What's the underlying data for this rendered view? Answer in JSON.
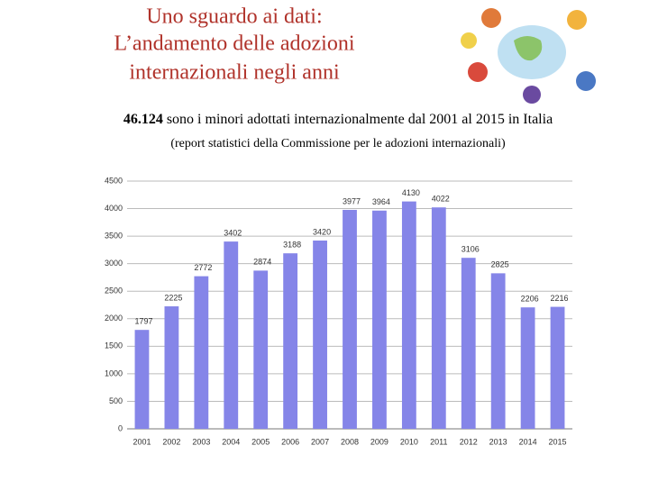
{
  "title_lines": [
    "Uno sguardo ai dati:",
    "L’andamento delle adozioni",
    "internazionali negli anni"
  ],
  "headline": {
    "number": "46.124",
    "text": "sono i minori adottati internazionalmente dal 2001 al 2015 in Italia"
  },
  "source": "(report statistici della Commissione per le adozioni internazionali)",
  "chart_data": {
    "type": "bar",
    "categories": [
      "2001",
      "2002",
      "2003",
      "2004",
      "2005",
      "2006",
      "2007",
      "2008",
      "2009",
      "2010",
      "2011",
      "2012",
      "2013",
      "2014",
      "2015"
    ],
    "values": [
      1797,
      2225,
      2772,
      3402,
      2874,
      3188,
      3420,
      3977,
      3964,
      4130,
      4022,
      3106,
      2825,
      2206,
      2216
    ],
    "color": "#8585e8",
    "ylim": [
      0,
      4500
    ],
    "yticks": [
      0,
      500,
      1000,
      1500,
      2000,
      2500,
      3000,
      3500,
      4000,
      4500
    ],
    "grid": true
  }
}
